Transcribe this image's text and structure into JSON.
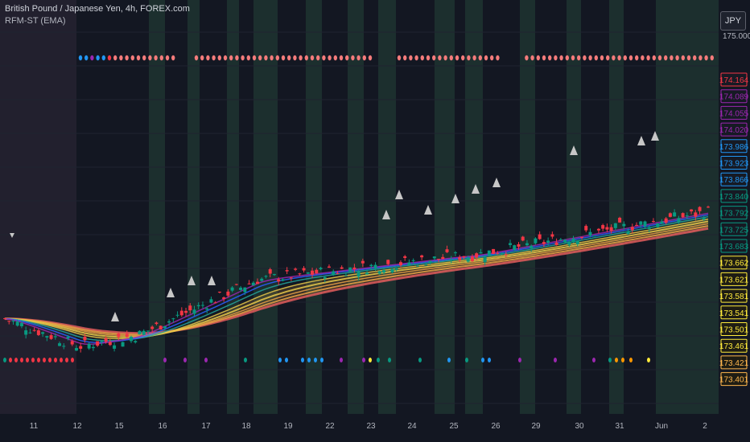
{
  "header": {
    "title": "British Pound / Japanese Yen, 4h, FOREX.com",
    "indicator": "RFM-ST (EMA)",
    "currency": "JPY",
    "top_scale_label": "175.000"
  },
  "chart_data": {
    "type": "candlestick",
    "ylim": [
      173.38,
      175.02
    ],
    "grid": true,
    "x_tick_labels": [
      "11",
      "12",
      "15",
      "16",
      "17",
      "18",
      "19",
      "22",
      "23",
      "24",
      "25",
      "26",
      "29",
      "30",
      "31",
      "Jun",
      "2"
    ],
    "price_labels": [
      {
        "value": "174.164",
        "color": "#f23645"
      },
      {
        "value": "174.089",
        "color": "#9c27b0"
      },
      {
        "value": "174.055",
        "color": "#9c27b0"
      },
      {
        "value": "174.020",
        "color": "#9c27b0"
      },
      {
        "value": "173.986",
        "color": "#2196f3"
      },
      {
        "value": "173.923",
        "color": "#2196f3"
      },
      {
        "value": "173.866",
        "color": "#2196f3"
      },
      {
        "value": "173.840",
        "color": "#089981"
      },
      {
        "value": "173.792",
        "color": "#089981"
      },
      {
        "value": "173.725",
        "color": "#089981"
      },
      {
        "value": "173.683",
        "color": "#089981"
      },
      {
        "value": "173.662",
        "color": "#ffeb3b"
      },
      {
        "value": "173.621",
        "color": "#ffeb3b"
      },
      {
        "value": "173.581",
        "color": "#ffeb3b"
      },
      {
        "value": "173.541",
        "color": "#ffeb3b"
      },
      {
        "value": "173.501",
        "color": "#ffeb3b"
      },
      {
        "value": "173.461",
        "color": "#ffeb3b"
      },
      {
        "value": "173.421",
        "color": "#ffb74d"
      },
      {
        "value": "173.401",
        "color": "#ffb74d"
      }
    ],
    "colors": {
      "up": "#089981",
      "down": "#f23645",
      "grid": "#1f2330",
      "text": "#b2b5be",
      "triangle": "#c7c7c7",
      "band_red": "#e05c5c",
      "band_orange": "#e8a046",
      "band_yellow": "#e6c84a",
      "band_teal": "#26a69a",
      "band_blue": "#2962ff",
      "band_purple": "#9c27b0"
    }
  }
}
